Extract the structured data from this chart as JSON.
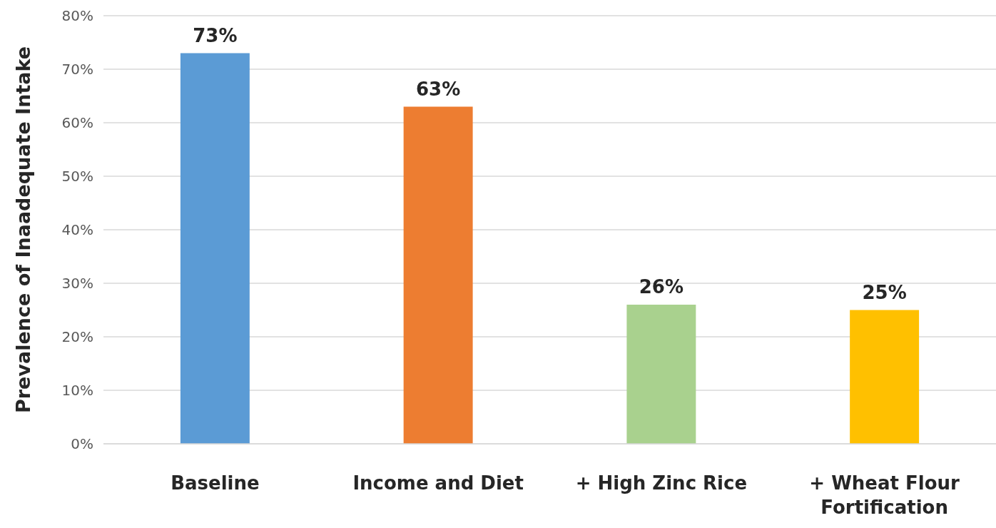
{
  "chart_data": {
    "type": "bar",
    "ylabel": "Prevalence of Inaadequate Intake",
    "categories": [
      "Baseline",
      "Income and Diet",
      "+ High Zinc Rice",
      "+ Wheat Flour Fortification"
    ],
    "values": [
      73,
      63,
      26,
      25
    ],
    "colors": [
      "#5b9bd5",
      "#ed7d31",
      "#a9d18e",
      "#ffc000"
    ],
    "value_labels": [
      "73%",
      "63%",
      "26%",
      "25%"
    ],
    "ylim": [
      0,
      80
    ],
    "yticks": [
      {
        "value": 0,
        "label": "0%"
      },
      {
        "value": 10,
        "label": "10%"
      },
      {
        "value": 20,
        "label": "20%"
      },
      {
        "value": 30,
        "label": "30%"
      },
      {
        "value": 40,
        "label": "40%"
      },
      {
        "value": 50,
        "label": "50%"
      },
      {
        "value": 60,
        "label": "60%"
      },
      {
        "value": 70,
        "label": "70%"
      },
      {
        "value": 80,
        "label": "80%"
      }
    ],
    "grid": "y"
  }
}
